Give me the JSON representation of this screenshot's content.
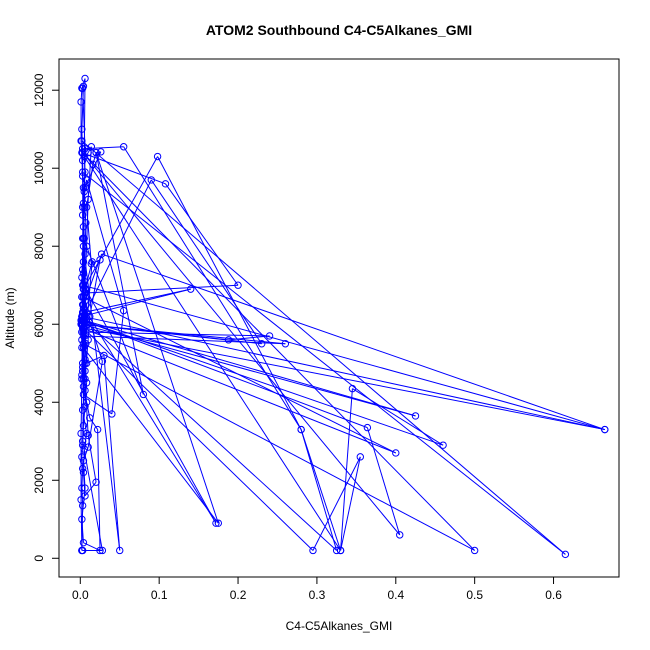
{
  "chart_data": {
    "type": "line",
    "title": "ATOM2 Southbound C4-C5Alkanes_GMI",
    "xlabel": "C4-C5Alkanes_GMI",
    "ylabel": "Altitude (m)",
    "xlim": [
      -0.027,
      0.683
    ],
    "ylim": [
      -480,
      12800
    ],
    "x_ticks": [
      0.0,
      0.1,
      0.2,
      0.3,
      0.4,
      0.5,
      0.6
    ],
    "x_tick_labels": [
      "0.0",
      "0.1",
      "0.2",
      "0.3",
      "0.4",
      "0.5",
      "0.6"
    ],
    "y_ticks": [
      0,
      2000,
      4000,
      6000,
      8000,
      10000,
      12000
    ],
    "y_tick_labels": [
      "0",
      "2000",
      "4000",
      "6000",
      "8000",
      "10000",
      "12000"
    ],
    "grid": false,
    "series": [
      {
        "color": "#0000ff",
        "marker": "open-circle",
        "line": true,
        "points": [
          [
            0.002,
            200
          ],
          [
            0.001,
            1500
          ],
          [
            0.001,
            3200
          ],
          [
            0.002,
            4600
          ],
          [
            0.003,
            6200
          ],
          [
            0.004,
            7600
          ],
          [
            0.005,
            9000
          ],
          [
            0.006,
            10500
          ],
          [
            0.003,
            12050
          ],
          [
            0.004,
            12100
          ],
          [
            0.002,
            11000
          ],
          [
            0.003,
            10200
          ],
          [
            0.01,
            10400
          ],
          [
            0.014,
            10550
          ],
          [
            0.01,
            9200
          ],
          [
            0.008,
            8000
          ],
          [
            0.006,
            7000
          ],
          [
            0.005,
            6200
          ],
          [
            0.004,
            5800
          ],
          [
            0.003,
            5000
          ],
          [
            0.006,
            4300
          ],
          [
            0.003,
            3800
          ],
          [
            0.008,
            3200
          ],
          [
            0.005,
            2800
          ],
          [
            0.004,
            2200
          ],
          [
            0.006,
            1600
          ],
          [
            0.02,
            1950
          ],
          [
            0.01,
            3150
          ],
          [
            0.006,
            4600
          ],
          [
            0.01,
            5600
          ],
          [
            0.012,
            6200
          ],
          [
            0.025,
            7650
          ],
          [
            0.014,
            7550
          ],
          [
            0.008,
            9000
          ],
          [
            0.016,
            10100
          ],
          [
            0.02,
            10400
          ],
          [
            0.026,
            10420
          ],
          [
            0.006,
            9500
          ],
          [
            0.004,
            8500
          ],
          [
            0.002,
            7200
          ],
          [
            0.004,
            6400
          ],
          [
            0.002,
            5600
          ],
          [
            0.004,
            4200
          ],
          [
            0.04,
            3700
          ],
          [
            0.055,
            6350
          ],
          [
            0.008,
            9700
          ],
          [
            0.005,
            9400
          ],
          [
            0.003,
            8800
          ],
          [
            0.005,
            8200
          ],
          [
            0.003,
            7400
          ],
          [
            0.002,
            6700
          ],
          [
            0.003,
            6000
          ],
          [
            0.002,
            5400
          ],
          [
            0.006,
            4800
          ],
          [
            0.004,
            4400
          ],
          [
            0.008,
            4000
          ],
          [
            0.012,
            3600
          ],
          [
            0.022,
            3300
          ],
          [
            0.025,
            200
          ],
          [
            0.004,
            400
          ],
          [
            0.002,
            1000
          ],
          [
            0.006,
            1800
          ],
          [
            0.004,
            2500
          ],
          [
            0.01,
            2850
          ],
          [
            0.028,
            5050
          ],
          [
            0.008,
            6300
          ],
          [
            0.006,
            6700
          ],
          [
            0.005,
            7100
          ],
          [
            0.004,
            7300
          ],
          [
            0.003,
            8200
          ],
          [
            0.004,
            9100
          ],
          [
            0.006,
            9900
          ],
          [
            0.005,
            10300
          ],
          [
            0.006,
            12300
          ],
          [
            0.002,
            12050
          ],
          [
            0.001,
            11700
          ],
          [
            0.001,
            10700
          ],
          [
            0.003,
            9800
          ],
          [
            0.007,
            8600
          ],
          [
            0.006,
            7800
          ],
          [
            0.004,
            6900
          ],
          [
            0.003,
            6500
          ],
          [
            0.004,
            5900
          ],
          [
            0.007,
            5500
          ],
          [
            0.006,
            5100
          ],
          [
            0.008,
            4500
          ],
          [
            0.006,
            3900
          ],
          [
            0.004,
            3400
          ],
          [
            0.003,
            2900
          ],
          [
            0.002,
            2600
          ],
          [
            0.003,
            2300
          ],
          [
            0.002,
            1800
          ],
          [
            0.003,
            1350
          ],
          [
            0.002,
            200
          ],
          [
            0.003,
            200
          ],
          [
            0.028,
            200
          ],
          [
            0.003,
            3000
          ],
          [
            0.006,
            6600
          ],
          [
            0.027,
            7800
          ],
          [
            0.665,
            3300
          ],
          [
            0.005,
            5900
          ],
          [
            0.004,
            6500
          ],
          [
            0.008,
            5000
          ],
          [
            0.03,
            5200
          ],
          [
            0.05,
            200
          ],
          [
            0.004,
            8000
          ],
          [
            0.003,
            9000
          ],
          [
            0.004,
            9500
          ],
          [
            0.006,
            6800
          ],
          [
            0.005,
            6400
          ],
          [
            0.172,
            900
          ],
          [
            0.004,
            7000
          ],
          [
            0.004,
            8200
          ],
          [
            0.08,
            4200
          ],
          [
            0.02,
            10400
          ],
          [
            0.175,
            900
          ],
          [
            0.004,
            5400
          ],
          [
            0.003,
            6000
          ],
          [
            0.004,
            6100
          ],
          [
            0.006,
            6900
          ],
          [
            0.015,
            7600
          ],
          [
            0.003,
            4800
          ],
          [
            0.004,
            5800
          ],
          [
            0.005,
            6200
          ],
          [
            0.01,
            6000
          ],
          [
            0.002,
            6700
          ],
          [
            0.006,
            6800
          ],
          [
            0.2,
            7000
          ],
          [
            0.108,
            9600
          ],
          [
            0.002,
            10400
          ],
          [
            0.33,
            200
          ],
          [
            0.355,
            2600
          ],
          [
            0.295,
            200
          ],
          [
            0.004,
            5900
          ],
          [
            0.003,
            6300
          ],
          [
            0.005,
            6100
          ],
          [
            0.004,
            5700
          ],
          [
            0.001,
            6000
          ],
          [
            0.002,
            5800
          ],
          [
            0.24,
            5700
          ],
          [
            0.188,
            5600
          ],
          [
            0.002,
            6000
          ],
          [
            0.425,
            3650
          ],
          [
            0.005,
            6100
          ],
          [
            0.003,
            7000
          ],
          [
            0.665,
            3300
          ],
          [
            0.003,
            6200
          ],
          [
            0.002,
            5800
          ],
          [
            0.006,
            5000
          ],
          [
            0.004,
            4600
          ],
          [
            0.002,
            4700
          ],
          [
            0.003,
            4900
          ],
          [
            0.001,
            6100
          ],
          [
            0.002,
            6000
          ],
          [
            0.003,
            5900
          ],
          [
            0.4,
            2700
          ],
          [
            0.004,
            6700
          ],
          [
            0.002,
            6200
          ],
          [
            0.004,
            5900
          ],
          [
            0.003,
            6300
          ],
          [
            0.002,
            6100
          ],
          [
            0.09,
            9700
          ],
          [
            0.23,
            5500
          ],
          [
            0.003,
            6000
          ],
          [
            0.004,
            6900
          ],
          [
            0.098,
            10300
          ],
          [
            0.28,
            3300
          ],
          [
            0.325,
            200
          ],
          [
            0.005,
            6100
          ],
          [
            0.002,
            6000
          ],
          [
            0.26,
            5500
          ],
          [
            0.006,
            5700
          ],
          [
            0.004,
            6300
          ],
          [
            0.14,
            6900
          ],
          [
            0.002,
            6200
          ],
          [
            0.004,
            6700
          ],
          [
            0.003,
            10500
          ],
          [
            0.055,
            10550
          ],
          [
            0.28,
            3300
          ],
          [
            0.33,
            200
          ],
          [
            0.345,
            4350
          ],
          [
            0.46,
            2900
          ],
          [
            0.003,
            6100
          ],
          [
            0.364,
            3350
          ],
          [
            0.405,
            600
          ],
          [
            0.003,
            10400
          ],
          [
            0.5,
            200
          ],
          [
            0.004,
            5500
          ],
          [
            0.003,
            9900
          ],
          [
            0.615,
            100
          ],
          [
            0.002,
            10700
          ]
        ]
      }
    ]
  }
}
